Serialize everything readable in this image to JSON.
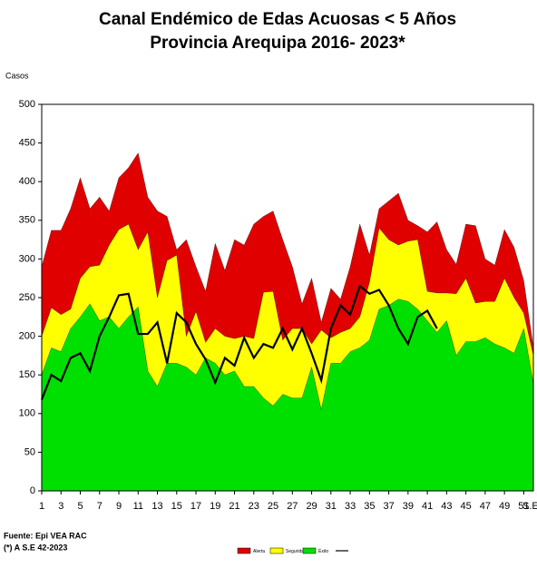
{
  "chart_data": {
    "type": "area",
    "title": "Canal Endémico de Edas Acuosas  < 5 Años",
    "subtitle": "Provincia Arequipa  2016- 2023*",
    "y_label": "Casos",
    "x_label": "S.E",
    "notes": [
      "Fuente: Epi VEA RAC",
      "(*) A S.E  42-2023"
    ],
    "x": [
      1,
      2,
      3,
      4,
      5,
      6,
      7,
      8,
      9,
      10,
      11,
      12,
      13,
      14,
      15,
      16,
      17,
      18,
      19,
      20,
      21,
      22,
      23,
      24,
      25,
      26,
      27,
      28,
      29,
      30,
      31,
      32,
      33,
      34,
      35,
      36,
      37,
      38,
      39,
      40,
      41,
      42,
      43,
      44,
      45,
      46,
      47,
      48,
      49,
      50,
      51,
      52
    ],
    "xlim": [
      1,
      52
    ],
    "xticks": [
      1,
      3,
      5,
      7,
      9,
      11,
      13,
      15,
      17,
      19,
      21,
      23,
      25,
      27,
      29,
      31,
      33,
      35,
      37,
      39,
      41,
      43,
      45,
      47,
      49,
      51
    ],
    "ylim": [
      0,
      500
    ],
    "yticks": [
      0,
      50,
      100,
      150,
      200,
      250,
      300,
      350,
      400,
      450,
      500
    ],
    "series": [
      {
        "name": "Alerta",
        "color": "#e00000",
        "kind": "area",
        "values": [
          290,
          337,
          337,
          365,
          405,
          365,
          380,
          362,
          405,
          418,
          437,
          380,
          362,
          355,
          312,
          325,
          290,
          258,
          320,
          285,
          325,
          318,
          345,
          355,
          362,
          325,
          290,
          242,
          275,
          218,
          262,
          248,
          290,
          345,
          305,
          365,
          375,
          385,
          350,
          343,
          335,
          348,
          312,
          293,
          345,
          343,
          300,
          292,
          338,
          315,
          272,
          185
        ]
      },
      {
        "name": "Seguridad",
        "color": "#ffff00",
        "kind": "area",
        "values": [
          200,
          237,
          228,
          235,
          275,
          290,
          292,
          318,
          338,
          345,
          312,
          335,
          250,
          298,
          305,
          200,
          232,
          192,
          210,
          200,
          197,
          200,
          197,
          257,
          258,
          195,
          210,
          210,
          190,
          208,
          198,
          205,
          210,
          225,
          270,
          340,
          325,
          318,
          323,
          325,
          258,
          256,
          256,
          255,
          275,
          243,
          245,
          245,
          275,
          250,
          230,
          175
        ]
      },
      {
        "name": "Éxito",
        "color": "#00e000",
        "kind": "area",
        "values": [
          150,
          185,
          180,
          210,
          225,
          242,
          220,
          225,
          210,
          225,
          238,
          155,
          135,
          165,
          165,
          160,
          150,
          172,
          165,
          150,
          155,
          135,
          135,
          120,
          110,
          125,
          120,
          120,
          160,
          105,
          165,
          165,
          180,
          185,
          195,
          235,
          240,
          248,
          245,
          235,
          220,
          205,
          220,
          175,
          193,
          193,
          198,
          190,
          185,
          178,
          210,
          138
        ]
      },
      {
        "color": "#000000",
        "kind": "line",
        "values": [
          118,
          150,
          142,
          172,
          178,
          155,
          200,
          225,
          253,
          255,
          203,
          203,
          218,
          165,
          230,
          218,
          190,
          170,
          140,
          172,
          162,
          198,
          172,
          190,
          185,
          210,
          183,
          210,
          178,
          143,
          210,
          240,
          228,
          265,
          255,
          260,
          240,
          210,
          190,
          225,
          233,
          210,
          null,
          null,
          null,
          null,
          null,
          null,
          null,
          null,
          null,
          null
        ]
      }
    ]
  }
}
